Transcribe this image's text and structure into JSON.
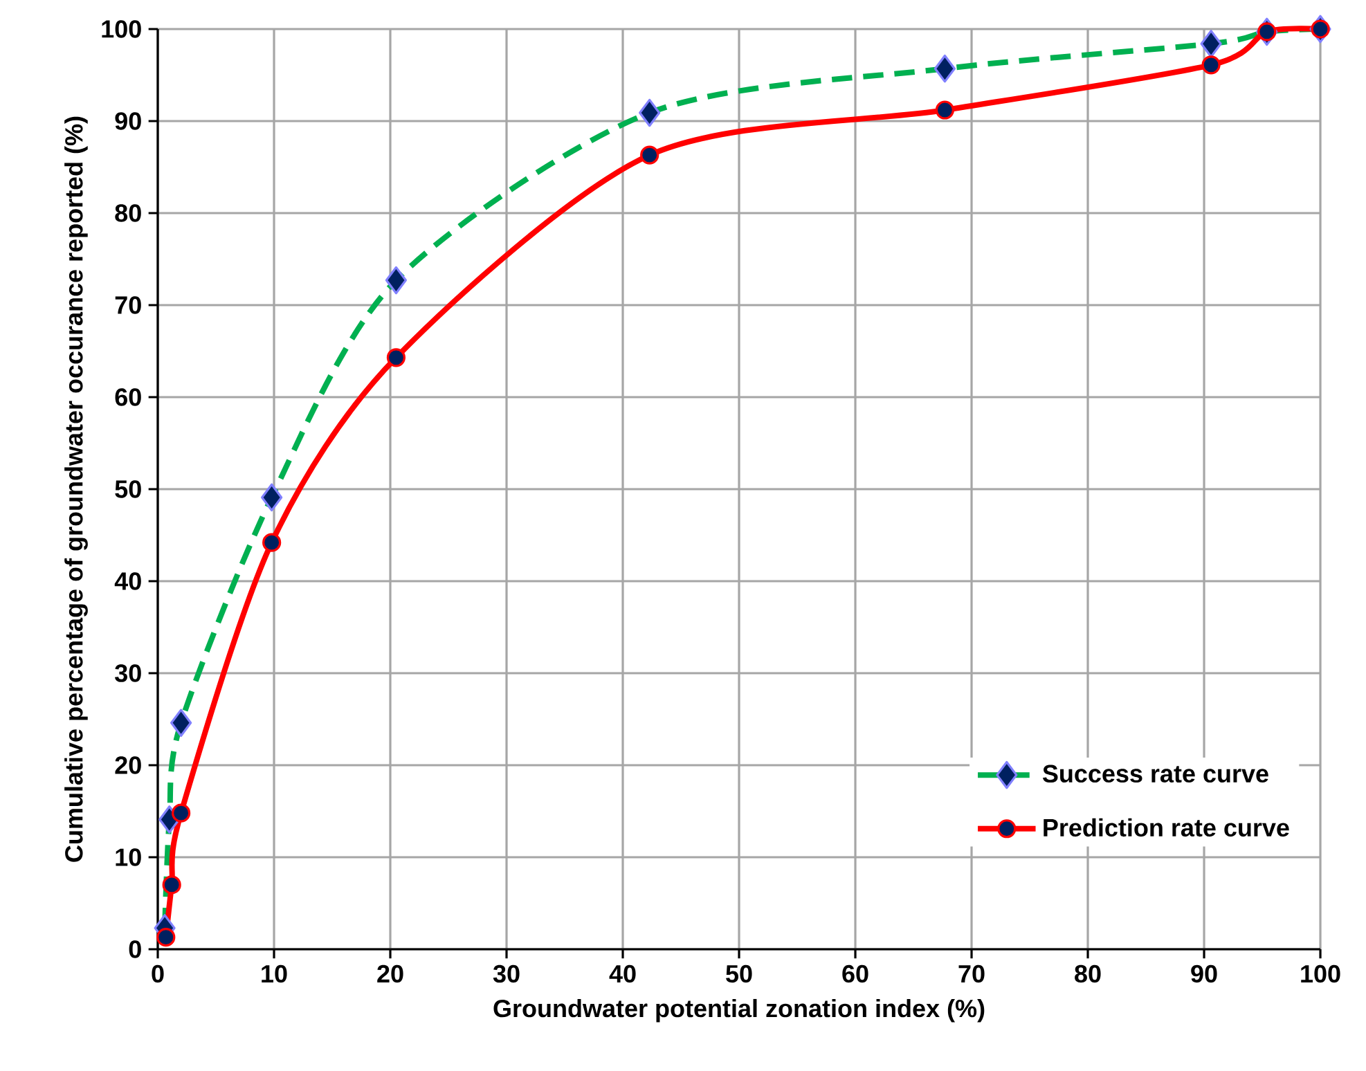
{
  "chart_data": {
    "type": "line",
    "xlabel": "Groundwater potential zonation index (%)",
    "ylabel": "Cumulative percentage of groundwater occurance reported (%)",
    "xlim": [
      0,
      100
    ],
    "ylim": [
      0,
      100
    ],
    "xticks": [
      0,
      10,
      20,
      30,
      40,
      50,
      60,
      70,
      80,
      90,
      100
    ],
    "yticks": [
      0,
      10,
      20,
      30,
      40,
      50,
      60,
      70,
      80,
      90,
      100
    ],
    "grid": true,
    "legend": "bottom right",
    "series": [
      {
        "name": "Success rate curve",
        "color": "#00b050",
        "marker": "diamond",
        "line_style": "dashed",
        "x": [
          0.6,
          1.0,
          2.0,
          9.8,
          20.5,
          42.3,
          67.7,
          90.6,
          95.4,
          100
        ],
        "values": [
          2.3,
          14.1,
          24.6,
          49.1,
          72.7,
          90.9,
          95.7,
          98.4,
          99.7,
          100
        ]
      },
      {
        "name": "Prediction rate curve",
        "color": "#ff0000",
        "marker": "circle",
        "line_style": "solid",
        "x": [
          0.7,
          1.2,
          2.0,
          9.8,
          20.5,
          42.3,
          67.7,
          90.6,
          95.4,
          100
        ],
        "values": [
          1.3,
          7.0,
          14.8,
          44.2,
          64.3,
          86.3,
          91.2,
          96.1,
          99.7,
          100
        ]
      }
    ]
  }
}
